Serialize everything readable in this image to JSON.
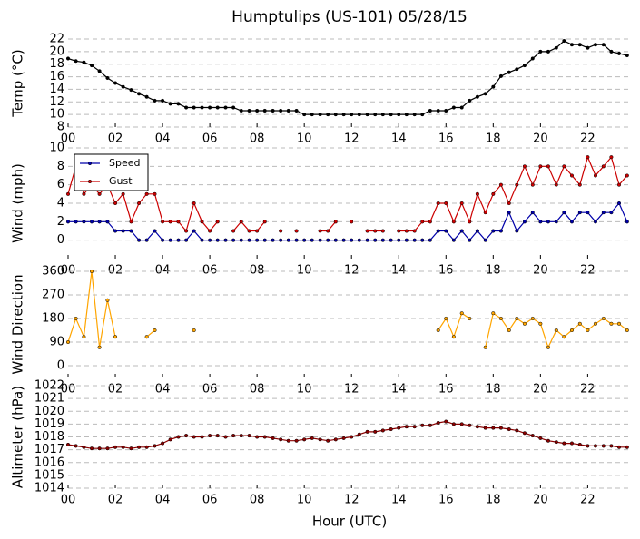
{
  "chart_data": [
    {
      "type": "line",
      "title": "Humptulips (US-101) 05/28/15",
      "ylabel": "Temp (°C)",
      "x": [
        0,
        0.33,
        0.67,
        1,
        1.33,
        1.67,
        2,
        2.33,
        2.67,
        3,
        3.33,
        3.67,
        4,
        4.33,
        4.67,
        5,
        5.33,
        5.67,
        6,
        6.33,
        6.67,
        7,
        7.33,
        7.67,
        8,
        8.33,
        8.67,
        9,
        9.33,
        9.67,
        10,
        10.33,
        10.67,
        11,
        11.33,
        11.67,
        12,
        12.33,
        12.67,
        13,
        13.33,
        13.67,
        14,
        14.33,
        14.67,
        15,
        15.33,
        15.67,
        16,
        16.33,
        16.67,
        17,
        17.33,
        17.67,
        18,
        18.33,
        18.67,
        19,
        19.33,
        19.67,
        20,
        20.33,
        20.67,
        21,
        21.33,
        21.67,
        22,
        22.33,
        22.67,
        23,
        23.33,
        23.67
      ],
      "series": [
        {
          "name": "Temp",
          "color": "#000000",
          "values": [
            18.9,
            18.5,
            18.3,
            17.8,
            16.9,
            15.8,
            15.0,
            14.4,
            13.9,
            13.3,
            12.8,
            12.2,
            12.2,
            11.7,
            11.7,
            11.1,
            11.1,
            11.1,
            11.1,
            11.1,
            11.1,
            11.1,
            10.6,
            10.6,
            10.6,
            10.6,
            10.6,
            10.6,
            10.6,
            10.6,
            10.0,
            10.0,
            10.0,
            10.0,
            10.0,
            10.0,
            10.0,
            10.0,
            10.0,
            10.0,
            10.0,
            10.0,
            10.0,
            10.0,
            10.0,
            10.0,
            10.6,
            10.6,
            10.6,
            11.1,
            11.1,
            12.2,
            12.8,
            13.3,
            14.4,
            16.1,
            16.7,
            17.2,
            17.8,
            18.9,
            20.0,
            20.0,
            20.6,
            21.7,
            21.1,
            21.1,
            20.6,
            21.1,
            21.1,
            20.0,
            19.7,
            19.4
          ]
        }
      ],
      "xlim": [
        0,
        23.83
      ],
      "xticks": [
        {
          "value": 0,
          "label": "00"
        },
        {
          "value": 2,
          "label": "02"
        },
        {
          "value": 4,
          "label": "04"
        },
        {
          "value": 6,
          "label": "06"
        },
        {
          "value": 8,
          "label": "08"
        },
        {
          "value": 10,
          "label": "10"
        },
        {
          "value": 12,
          "label": "12"
        },
        {
          "value": 14,
          "label": "14"
        },
        {
          "value": 16,
          "label": "16"
        },
        {
          "value": 18,
          "label": "18"
        },
        {
          "value": 20,
          "label": "20"
        },
        {
          "value": 22,
          "label": "22"
        }
      ],
      "ylim": [
        8,
        22
      ],
      "yticks": [
        8,
        10,
        12,
        14,
        16,
        18,
        20,
        22
      ],
      "grid": true
    },
    {
      "type": "line",
      "ylabel": "Wind (mph)",
      "legend": "upper left",
      "x": [
        0,
        0.33,
        0.67,
        1,
        1.33,
        1.67,
        2,
        2.33,
        2.67,
        3,
        3.33,
        3.67,
        4,
        4.33,
        4.67,
        5,
        5.33,
        5.67,
        6,
        6.33,
        6.67,
        7,
        7.33,
        7.67,
        8,
        8.33,
        8.67,
        9,
        9.33,
        9.67,
        10,
        10.33,
        10.67,
        11,
        11.33,
        11.67,
        12,
        12.33,
        12.67,
        13,
        13.33,
        13.67,
        14,
        14.33,
        14.67,
        15,
        15.33,
        15.67,
        16,
        16.33,
        16.67,
        17,
        17.33,
        17.67,
        18,
        18.33,
        18.67,
        19,
        19.33,
        19.67,
        20,
        20.33,
        20.67,
        21,
        21.33,
        21.67,
        22,
        22.33,
        22.67,
        23,
        23.33,
        23.67
      ],
      "series": [
        {
          "name": "Speed",
          "color": "#0000aa",
          "values": [
            2,
            2,
            2,
            2,
            2,
            2,
            1,
            1,
            1,
            0,
            0,
            1,
            0,
            0,
            0,
            0,
            1,
            0,
            0,
            0,
            0,
            0,
            0,
            0,
            0,
            0,
            0,
            0,
            0,
            0,
            0,
            0,
            0,
            0,
            0,
            0,
            0,
            0,
            0,
            0,
            0,
            0,
            0,
            0,
            0,
            0,
            0,
            1,
            1,
            0,
            1,
            0,
            1,
            0,
            1,
            1,
            3,
            1,
            2,
            3,
            2,
            2,
            2,
            3,
            2,
            3,
            3,
            2,
            3,
            3,
            4,
            2
          ]
        },
        {
          "name": "Gust",
          "color": "#cc0000",
          "values": [
            5,
            8,
            5,
            6,
            5,
            6,
            4,
            5,
            2,
            4,
            5,
            5,
            2,
            2,
            2,
            1,
            4,
            2,
            1,
            2,
            null,
            1,
            2,
            1,
            1,
            2,
            null,
            1,
            null,
            1,
            null,
            null,
            1,
            1,
            2,
            null,
            2,
            null,
            1,
            1,
            1,
            null,
            1,
            1,
            1,
            2,
            2,
            4,
            4,
            2,
            4,
            2,
            5,
            3,
            5,
            6,
            4,
            6,
            8,
            6,
            8,
            8,
            6,
            8,
            7,
            6,
            9,
            7,
            8,
            9,
            6,
            7
          ]
        }
      ],
      "xlim": [
        0,
        23.83
      ],
      "xticks": [
        {
          "value": 0,
          "label": "00"
        },
        {
          "value": 2,
          "label": "02"
        },
        {
          "value": 4,
          "label": "04"
        },
        {
          "value": 6,
          "label": "06"
        },
        {
          "value": 8,
          "label": "08"
        },
        {
          "value": 10,
          "label": "10"
        },
        {
          "value": 12,
          "label": "12"
        },
        {
          "value": 14,
          "label": "14"
        },
        {
          "value": 16,
          "label": "16"
        },
        {
          "value": 18,
          "label": "18"
        },
        {
          "value": 20,
          "label": "20"
        },
        {
          "value": 22,
          "label": "22"
        }
      ],
      "ylim": [
        -2,
        10
      ],
      "yticks": [
        0,
        2,
        4,
        6,
        8,
        10
      ],
      "grid": true
    },
    {
      "type": "line",
      "ylabel": "Wind Direction",
      "x": [
        0,
        0.33,
        0.67,
        1,
        1.33,
        1.67,
        2,
        2.33,
        2.67,
        3,
        3.33,
        3.67,
        4,
        4.33,
        4.67,
        5,
        5.33,
        5.67,
        6,
        6.33,
        6.67,
        7,
        7.33,
        7.67,
        8,
        8.33,
        8.67,
        9,
        9.33,
        9.67,
        10,
        10.33,
        10.67,
        11,
        11.33,
        11.67,
        12,
        12.33,
        12.67,
        13,
        13.33,
        13.67,
        14,
        14.33,
        14.67,
        15,
        15.33,
        15.67,
        16,
        16.33,
        16.67,
        17,
        17.33,
        17.67,
        18,
        18.33,
        18.67,
        19,
        19.33,
        19.67,
        20,
        20.33,
        20.67,
        21,
        21.33,
        21.67,
        22,
        22.33,
        22.67,
        23,
        23.33,
        23.67
      ],
      "series": [
        {
          "name": "Direction",
          "color": "#ffa500",
          "values": [
            90,
            180,
            110,
            360,
            70,
            250,
            110,
            null,
            null,
            null,
            110,
            135,
            null,
            null,
            null,
            null,
            135,
            null,
            null,
            null,
            null,
            null,
            null,
            null,
            null,
            null,
            null,
            null,
            null,
            null,
            null,
            null,
            null,
            null,
            null,
            null,
            null,
            null,
            null,
            null,
            null,
            null,
            null,
            null,
            null,
            null,
            null,
            135,
            180,
            110,
            200,
            180,
            null,
            70,
            200,
            180,
            135,
            180,
            160,
            180,
            160,
            70,
            135,
            110,
            135,
            160,
            135,
            160,
            180,
            160,
            160,
            135
          ]
        }
      ],
      "xlim": [
        0,
        23.83
      ],
      "xticks": [
        {
          "value": 0,
          "label": "00"
        },
        {
          "value": 2,
          "label": "02"
        },
        {
          "value": 4,
          "label": "04"
        },
        {
          "value": 6,
          "label": "06"
        },
        {
          "value": 8,
          "label": "08"
        },
        {
          "value": 10,
          "label": "10"
        },
        {
          "value": 12,
          "label": "12"
        },
        {
          "value": 14,
          "label": "14"
        },
        {
          "value": 16,
          "label": "16"
        },
        {
          "value": 18,
          "label": "18"
        },
        {
          "value": 20,
          "label": "20"
        },
        {
          "value": 22,
          "label": "22"
        }
      ],
      "ylim": [
        -45,
        360
      ],
      "yticks": [
        0,
        90,
        180,
        270,
        360
      ],
      "grid": true
    },
    {
      "type": "line",
      "ylabel": "Altimeter (hPa)",
      "xlabel": "Hour (UTC)",
      "x": [
        0,
        0.33,
        0.67,
        1,
        1.33,
        1.67,
        2,
        2.33,
        2.67,
        3,
        3.33,
        3.67,
        4,
        4.33,
        4.67,
        5,
        5.33,
        5.67,
        6,
        6.33,
        6.67,
        7,
        7.33,
        7.67,
        8,
        8.33,
        8.67,
        9,
        9.33,
        9.67,
        10,
        10.33,
        10.67,
        11,
        11.33,
        11.67,
        12,
        12.33,
        12.67,
        13,
        13.33,
        13.67,
        14,
        14.33,
        14.67,
        15,
        15.33,
        15.67,
        16,
        16.33,
        16.67,
        17,
        17.33,
        17.67,
        18,
        18.33,
        18.67,
        19,
        19.33,
        19.67,
        20,
        20.33,
        20.67,
        21,
        21.33,
        21.67,
        22,
        22.33,
        22.67,
        23,
        23.33,
        23.67
      ],
      "series": [
        {
          "name": "Altimeter",
          "color": "#8b0000",
          "values": [
            1017.4,
            1017.3,
            1017.2,
            1017.1,
            1017.1,
            1017.1,
            1017.2,
            1017.2,
            1017.1,
            1017.2,
            1017.2,
            1017.3,
            1017.5,
            1017.8,
            1018.0,
            1018.1,
            1018.0,
            1018.0,
            1018.1,
            1018.1,
            1018.0,
            1018.1,
            1018.1,
            1018.1,
            1018.0,
            1018.0,
            1017.9,
            1017.8,
            1017.7,
            1017.7,
            1017.8,
            1017.9,
            1017.8,
            1017.7,
            1017.8,
            1017.9,
            1018.0,
            1018.2,
            1018.4,
            1018.4,
            1018.5,
            1018.6,
            1018.7,
            1018.8,
            1018.8,
            1018.9,
            1018.9,
            1019.1,
            1019.2,
            1019.0,
            1019.0,
            1018.9,
            1018.8,
            1018.7,
            1018.7,
            1018.7,
            1018.6,
            1018.5,
            1018.3,
            1018.1,
            1017.9,
            1017.7,
            1017.6,
            1017.5,
            1017.5,
            1017.4,
            1017.3,
            1017.3,
            1017.3,
            1017.3,
            1017.2,
            1017.2
          ]
        }
      ],
      "xlim": [
        0,
        23.83
      ],
      "xticks": [
        {
          "value": 0,
          "label": "00"
        },
        {
          "value": 2,
          "label": "02"
        },
        {
          "value": 4,
          "label": "04"
        },
        {
          "value": 6,
          "label": "06"
        },
        {
          "value": 8,
          "label": "08"
        },
        {
          "value": 10,
          "label": "10"
        },
        {
          "value": 12,
          "label": "12"
        },
        {
          "value": 14,
          "label": "14"
        },
        {
          "value": 16,
          "label": "16"
        },
        {
          "value": 18,
          "label": "18"
        },
        {
          "value": 20,
          "label": "20"
        },
        {
          "value": 22,
          "label": "22"
        }
      ],
      "ylim": [
        1014,
        1022
      ],
      "yticks": [
        1014,
        1015,
        1016,
        1017,
        1018,
        1019,
        1020,
        1021,
        1022
      ],
      "grid": true
    }
  ]
}
